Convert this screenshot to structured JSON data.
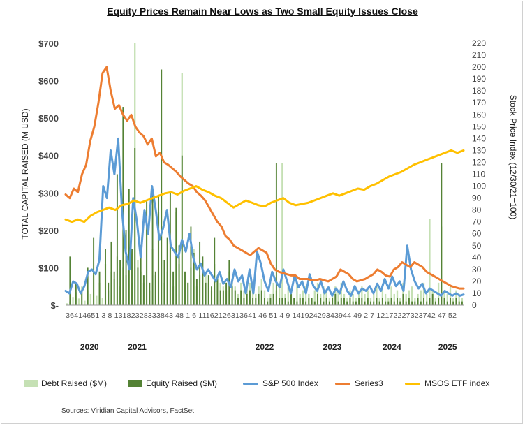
{
  "chart_data": {
    "type": "bar+line",
    "title": "Equity Prices Remain Near Lows as Two Small Equity Issues Close",
    "ylabel": "TOTAL  CAPITAL RAISED (M USD)",
    "y2label": "Stock Price Index (12/30/21=100)",
    "ylim": [
      0,
      700
    ],
    "y2lim": [
      0,
      220
    ],
    "yticks": [
      "$-",
      "$100",
      "$200",
      "$300",
      "$400",
      "$500",
      "$600",
      "$700"
    ],
    "y2ticks": [
      "0",
      "10",
      "20",
      "30",
      "40",
      "50",
      "60",
      "70",
      "80",
      "90",
      "100",
      "110",
      "120",
      "130",
      "140",
      "150",
      "160",
      "170",
      "180",
      "190",
      "200",
      "210",
      "220"
    ],
    "category_labels": "36414651 3   8  13182328333843 48  1   6  11162126313641 46 51  4   9  14192429343944 49  2   7  12172227323742 47 52",
    "years": [
      {
        "label": "2020",
        "x": 0.06
      },
      {
        "label": "2021",
        "x": 0.18
      },
      {
        "label": "2022",
        "x": 0.5
      },
      {
        "label": "2023",
        "x": 0.67
      },
      {
        "label": "2024",
        "x": 0.82
      },
      {
        "label": "2025",
        "x": 0.96
      }
    ],
    "series": [
      {
        "name": "Debt Raised ($M)",
        "kind": "bar",
        "axis": "left",
        "color": "#c5e0b4",
        "values": [
          5,
          10,
          22,
          35,
          18,
          50,
          12,
          40,
          30,
          80,
          25,
          60,
          20,
          110,
          40,
          90,
          70,
          130,
          50,
          100,
          80,
          140,
          60,
          700,
          120,
          90,
          60,
          200,
          40,
          150,
          80,
          250,
          120,
          60,
          90,
          170,
          50,
          250,
          110,
          620,
          80,
          60,
          100,
          150,
          50,
          80,
          120,
          90,
          60,
          40,
          110,
          80,
          60,
          50,
          40,
          90,
          70,
          50,
          30,
          60,
          40,
          50,
          60,
          40,
          30,
          50,
          70,
          40,
          20,
          30,
          60,
          40,
          50,
          380,
          30,
          50,
          40,
          20,
          60,
          30,
          40,
          50,
          30,
          20,
          40,
          60,
          30,
          50,
          40,
          20,
          30,
          50,
          40,
          60,
          30,
          20,
          40,
          30,
          20,
          40,
          50,
          30,
          40,
          20,
          30,
          50,
          20,
          40,
          30,
          20,
          50,
          30,
          40,
          20,
          60,
          30,
          40,
          50,
          20,
          30,
          40,
          60,
          30,
          230,
          40,
          20,
          60,
          210,
          40,
          30,
          50,
          20,
          40,
          30,
          20
        ]
      },
      {
        "name": "Equity Raised ($M)",
        "kind": "bar",
        "axis": "left",
        "color": "#548235",
        "values": [
          0,
          130,
          0,
          60,
          0,
          40,
          0,
          100,
          0,
          180,
          0,
          90,
          0,
          150,
          60,
          170,
          90,
          350,
          120,
          530,
          200,
          310,
          150,
          420,
          100,
          160,
          80,
          280,
          60,
          300,
          90,
          290,
          630,
          120,
          180,
          300,
          90,
          260,
          160,
          400,
          90,
          60,
          210,
          140,
          70,
          170,
          130,
          60,
          80,
          50,
          180,
          70,
          40,
          40,
          60,
          120,
          50,
          40,
          20,
          40,
          20,
          30,
          40,
          20,
          20,
          30,
          40,
          20,
          10,
          20,
          30,
          380,
          20,
          20,
          20,
          10,
          30,
          20,
          10,
          20,
          20,
          10,
          20,
          20,
          10,
          30,
          20,
          10,
          20,
          10,
          20,
          30,
          10,
          20,
          20,
          10,
          20,
          10,
          10,
          20,
          20,
          10,
          20,
          10,
          10,
          20,
          10,
          20,
          10,
          10,
          20,
          10,
          20,
          10,
          30,
          10,
          20,
          10,
          10,
          20,
          10,
          20,
          10,
          20,
          30,
          10,
          20,
          380,
          20,
          10,
          20,
          10,
          20,
          10,
          10
        ]
      },
      {
        "name": "S&P 500 Index",
        "kind": "line",
        "axis": "right",
        "color": "#5b9bd5",
        "values": [
          12,
          10,
          20,
          18,
          10,
          16,
          28,
          30,
          26,
          38,
          100,
          90,
          130,
          110,
          140,
          80,
          45,
          30,
          90,
          70,
          40,
          80,
          60,
          100,
          80,
          55,
          65,
          80,
          50,
          45,
          40,
          55,
          45,
          60,
          40,
          30,
          35,
          25,
          30,
          25,
          20,
          28,
          18,
          22,
          15,
          30,
          20,
          25,
          10,
          30,
          10,
          45,
          35,
          20,
          12,
          28,
          20,
          15,
          30,
          20,
          10,
          25,
          15,
          20,
          10,
          26,
          16,
          12,
          20,
          10,
          15,
          8,
          14,
          10,
          20,
          12,
          8,
          16,
          10,
          14,
          12,
          16,
          10,
          18,
          12,
          22,
          14,
          24,
          16,
          20,
          12,
          50,
          30,
          20,
          14,
          18,
          10,
          14,
          12,
          10,
          8,
          12,
          10,
          8,
          10,
          8,
          9
        ]
      },
      {
        "name": "Series3",
        "kind": "line",
        "axis": "right",
        "color": "#ed7d31",
        "values": [
          93,
          90,
          98,
          95,
          110,
          118,
          138,
          150,
          170,
          195,
          200,
          180,
          165,
          168,
          160,
          155,
          160,
          150,
          145,
          142,
          135,
          140,
          125,
          128,
          120,
          118,
          115,
          112,
          108,
          105,
          102,
          100,
          95,
          92,
          88,
          82,
          76,
          70,
          66,
          58,
          55,
          50,
          48,
          46,
          44,
          42,
          45,
          48,
          46,
          44,
          35,
          30,
          28,
          27,
          26,
          25,
          25,
          22,
          22,
          22,
          21,
          21,
          22,
          21,
          20,
          22,
          24,
          30,
          28,
          26,
          22,
          20,
          21,
          22,
          24,
          26,
          30,
          28,
          25,
          24,
          30,
          32,
          36,
          34,
          32,
          36,
          34,
          32,
          28,
          26,
          24,
          22,
          20,
          18,
          16,
          15,
          14,
          14
        ]
      },
      {
        "name": "MSOS ETF index",
        "kind": "line",
        "axis": "right",
        "color": "#ffc000",
        "values": [
          72,
          70,
          72,
          70,
          75,
          78,
          80,
          82,
          80,
          84,
          85,
          88,
          86,
          88,
          90,
          92,
          94,
          95,
          93,
          96,
          98,
          100,
          97,
          95,
          92,
          90,
          86,
          82,
          85,
          88,
          86,
          84,
          83,
          86,
          88,
          90,
          86,
          84,
          85,
          86,
          88,
          90,
          92,
          94,
          92,
          94,
          96,
          98,
          97,
          100,
          102,
          105,
          108,
          110,
          112,
          115,
          118,
          120,
          122,
          124,
          126,
          128,
          130,
          128,
          130
        ]
      }
    ],
    "legend": {
      "position": "bottom"
    }
  },
  "source": "Sources: Viridian Capital Advisors, FactSet"
}
